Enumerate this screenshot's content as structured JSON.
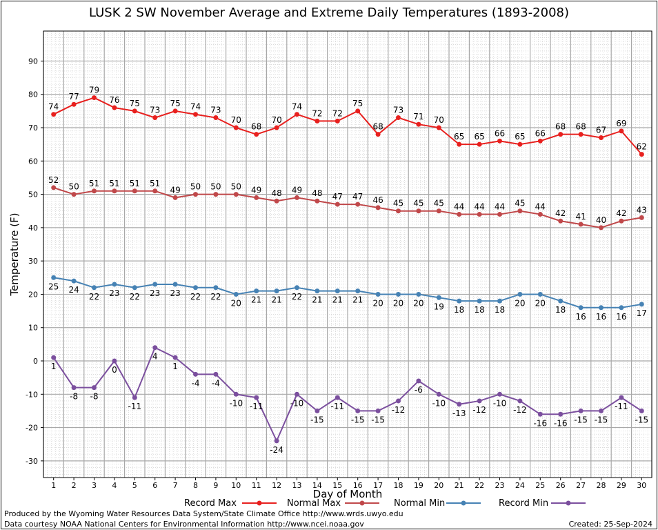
{
  "chart_data": {
    "type": "line",
    "title": "LUSK 2 SW November Average and Extreme Daily Temperatures (1893-2008)",
    "xlabel": "Day of Month",
    "ylabel": "Temperature (F)",
    "ylim": [
      -35,
      99
    ],
    "yticks": [
      -30,
      -20,
      -10,
      0,
      10,
      20,
      30,
      40,
      50,
      60,
      70,
      80,
      90
    ],
    "grid": true,
    "legend_position": "bottom",
    "x": [
      1,
      2,
      3,
      4,
      5,
      6,
      7,
      8,
      9,
      10,
      11,
      12,
      13,
      14,
      15,
      16,
      17,
      18,
      19,
      20,
      21,
      22,
      23,
      24,
      25,
      26,
      27,
      28,
      29,
      30
    ],
    "series": [
      {
        "name": "Record Max",
        "color": "#e8201e",
        "values": [
          74,
          77,
          79,
          76,
          75,
          73,
          75,
          74,
          73,
          70,
          68,
          70,
          74,
          72,
          72,
          75,
          68,
          73,
          71,
          70,
          65,
          65,
          66,
          65,
          66,
          68,
          68,
          67,
          69,
          62
        ]
      },
      {
        "name": "Normal Max",
        "color": "#c0484a",
        "values": [
          52,
          50,
          51,
          51,
          51,
          51,
          49,
          50,
          50,
          50,
          49,
          48,
          49,
          48,
          47,
          47,
          46,
          45,
          45,
          45,
          44,
          44,
          44,
          45,
          44,
          42,
          41,
          40,
          42,
          43
        ]
      },
      {
        "name": "Normal Min",
        "color": "#4682b4",
        "values": [
          25,
          24,
          22,
          23,
          22,
          23,
          23,
          22,
          22,
          20,
          21,
          21,
          22,
          21,
          21,
          21,
          20,
          20,
          20,
          19,
          18,
          18,
          18,
          20,
          20,
          18,
          16,
          16,
          16,
          17
        ]
      },
      {
        "name": "Record Min",
        "color": "#7b4f9e",
        "values": [
          1,
          -8,
          -8,
          0,
          -11,
          4,
          1,
          -4,
          -4,
          -10,
          -11,
          -24,
          -10,
          -15,
          -11,
          -15,
          -15,
          -12,
          -6,
          -10,
          -13,
          -12,
          -10,
          -12,
          -16,
          -16,
          -15,
          -15,
          -11,
          -15
        ]
      }
    ]
  },
  "footer": {
    "produced_by": "Produced by the Wyoming Water Resources Data System/State Climate Office http://www.wrds.uwyo.edu",
    "courtesy": "Data courtesy NOAA National Centers for Environmental Information http://www.ncei.noaa.gov",
    "created": "Created:  25-Sep-2024"
  }
}
